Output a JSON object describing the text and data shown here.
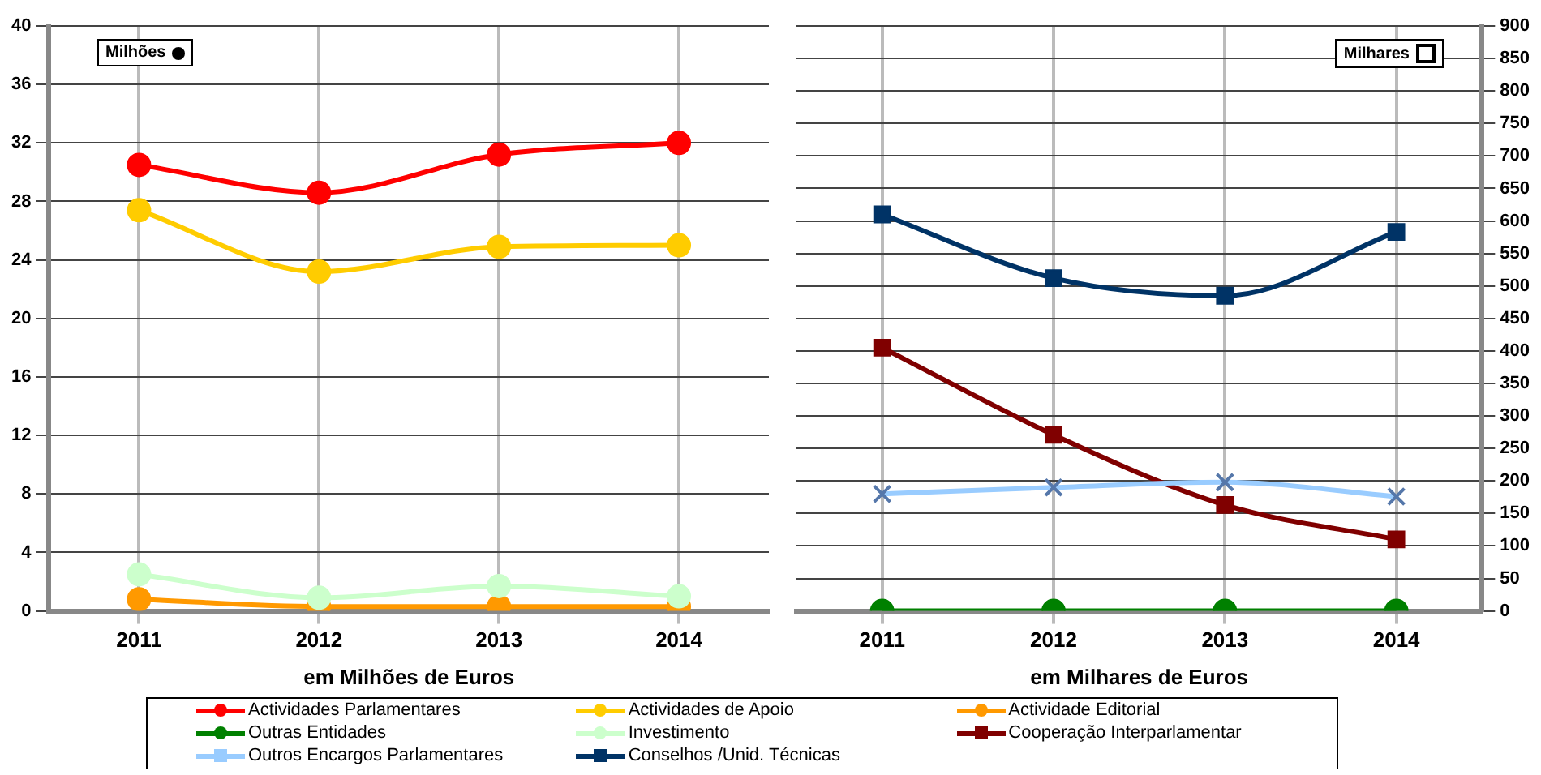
{
  "chart_data": [
    {
      "type": "line",
      "xlabel": "em Milhões de Euros",
      "categories": [
        "2011",
        "2012",
        "2013",
        "2014"
      ],
      "ylim": [
        0,
        40
      ],
      "yticks": [
        0,
        4,
        8,
        12,
        16,
        20,
        24,
        28,
        32,
        36,
        40
      ],
      "grid": true,
      "legend": "bottom",
      "marker": "circle",
      "annotations": [
        "Milhões"
      ],
      "series": [
        {
          "name": "Actividades Parlamentares",
          "color": "#ff0000",
          "values": [
            30.5,
            28.6,
            31.2,
            32.0
          ]
        },
        {
          "name": "Actividades de Apoio",
          "color": "#ffcc00",
          "values": [
            27.4,
            23.2,
            24.9,
            25.0
          ]
        },
        {
          "name": "Actividade Editorial",
          "color": "#ff9900",
          "values": [
            0.8,
            0.3,
            0.3,
            0.3
          ]
        },
        {
          "name": "Investimento",
          "color": "#ccffcc",
          "values": [
            2.5,
            0.9,
            1.7,
            1.0
          ]
        }
      ]
    },
    {
      "type": "line",
      "xlabel": "em Milhares de Euros",
      "categories": [
        "2011",
        "2012",
        "2013",
        "2014"
      ],
      "y2lim": [
        0,
        900
      ],
      "y2ticks": [
        0,
        50,
        100,
        150,
        200,
        250,
        300,
        350,
        400,
        450,
        500,
        550,
        600,
        650,
        700,
        750,
        800,
        850,
        900
      ],
      "grid": true,
      "legend": "bottom",
      "annotations": [
        "Milhares"
      ],
      "series": [
        {
          "name": "Outras Entidades",
          "color": "#008000",
          "axis": "y2",
          "marker": "circle",
          "values": [
            0,
            0,
            0,
            0
          ]
        },
        {
          "name": "Cooperação Interparlamentar",
          "color": "#800000",
          "axis": "y2",
          "marker": "square",
          "values": [
            405,
            271,
            163,
            110
          ]
        },
        {
          "name": "Outros Encargos Parlamentares",
          "color": "#99ccff",
          "axis": "y2",
          "marker": "cross",
          "values": [
            180,
            190,
            198,
            176
          ]
        },
        {
          "name": "Conselhos /Unid. Técnicas",
          "color": "#003366",
          "axis": "y2",
          "marker": "square",
          "values": [
            610,
            512,
            485,
            583
          ]
        }
      ]
    }
  ]
}
